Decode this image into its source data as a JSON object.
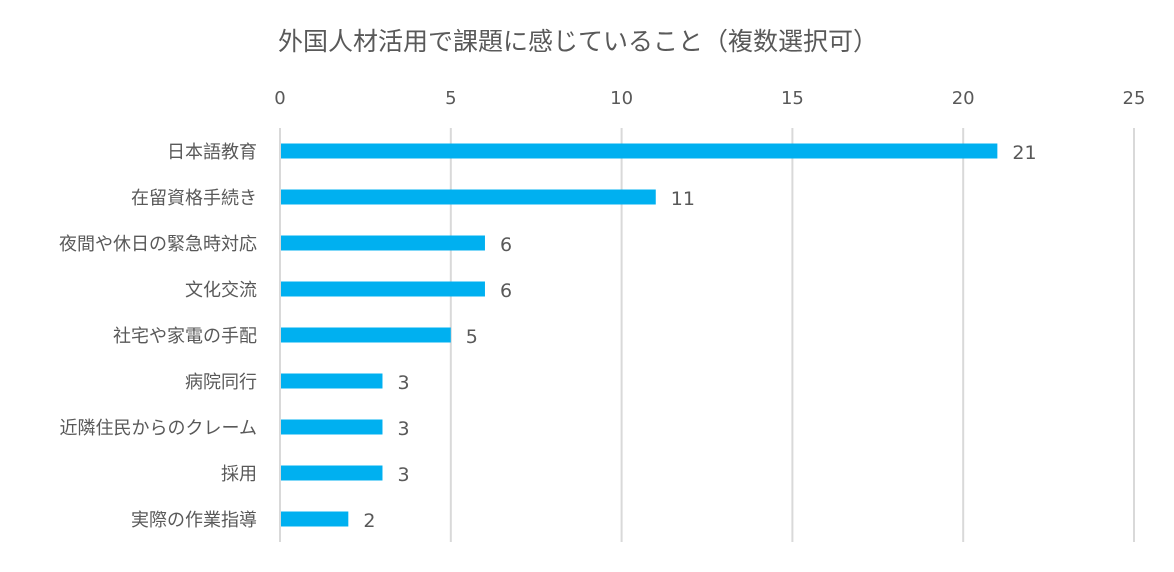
{
  "chart_data": {
    "type": "bar",
    "orientation": "horizontal",
    "title": "外国人材活用で課題に感じていること（複数選択可）",
    "xlabel": "",
    "ylabel": "",
    "categories": [
      "日本語教育",
      "在留資格手続き",
      "夜間や休日の緊急時対応",
      "文化交流",
      "社宅や家電の手配",
      "病院同行",
      "近隣住民からのクレーム",
      "採用",
      "実際の作業指導"
    ],
    "values": [
      21,
      11,
      6,
      6,
      5,
      3,
      3,
      3,
      2
    ],
    "xlim": [
      0,
      25
    ],
    "xticks": [
      "0",
      "5",
      "10",
      "15",
      "20",
      "25"
    ],
    "xaxis_position": "top",
    "grid": true,
    "data_labels": true,
    "bar_color": "#00B0F0",
    "grid_color": "#D9D9D9"
  }
}
